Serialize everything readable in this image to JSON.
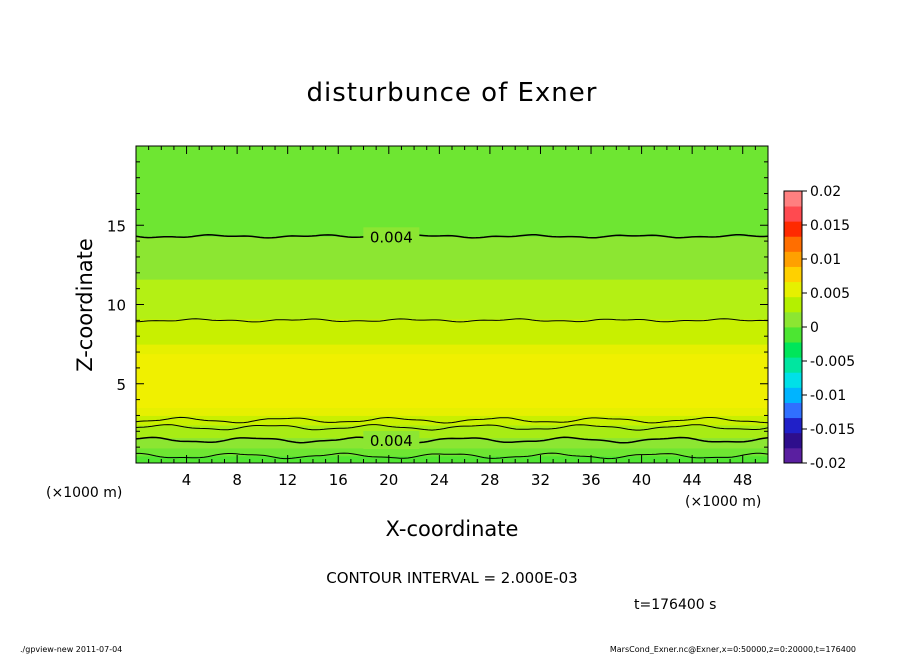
{
  "chart_data": {
    "type": "heatmap",
    "title": "disturbunce of Exner",
    "xlabel": "X-coordinate",
    "ylabel": "Z-coordinate",
    "x_unit_left": "(×1000 m)",
    "x_unit_right": "(×1000 m)",
    "xlim": [
      0,
      50
    ],
    "ylim": [
      0,
      20
    ],
    "x_ticks": [
      4,
      8,
      12,
      16,
      20,
      24,
      28,
      32,
      36,
      40,
      44,
      48
    ],
    "y_ticks": [
      5,
      10,
      15
    ],
    "contour_interval_text": "CONTOUR INTERVAL = 2.000E-03",
    "time_text": "t=176400 s",
    "colorbar": {
      "min": -0.02,
      "max": 0.02,
      "tick_labels": [
        "0.02",
        "0.015",
        "0.01",
        "0.005",
        "0",
        "-0.005",
        "-0.01",
        "-0.015",
        "-0.02"
      ],
      "tick_values": [
        0.02,
        0.015,
        0.01,
        0.005,
        0,
        -0.005,
        -0.01,
        -0.015,
        -0.02
      ],
      "colors": [
        "#5a1fa0",
        "#2e0e8c",
        "#2020c8",
        "#3070ff",
        "#00b4ff",
        "#00e0e8",
        "#00e6a0",
        "#00e65a",
        "#4ce632",
        "#8ce632",
        "#b4f000",
        "#e6f000",
        "#ffd000",
        "#ffa000",
        "#ff6e00",
        "#ff2a00",
        "#ff4a50",
        "#ff8080"
      ]
    },
    "bands": [
      {
        "z_from": 0.0,
        "z_to": 0.45,
        "color": "#50e632"
      },
      {
        "z_from": 0.45,
        "z_to": 0.95,
        "color": "#6ee632"
      },
      {
        "z_from": 0.95,
        "z_to": 1.6,
        "color": "#8ce632"
      },
      {
        "z_from": 1.6,
        "z_to": 2.4,
        "color": "#a8ec14"
      },
      {
        "z_from": 2.4,
        "z_to": 3.0,
        "color": "#c8f000"
      },
      {
        "z_from": 3.0,
        "z_to": 3.5,
        "color": "#e6f000"
      },
      {
        "z_from": 3.5,
        "z_to": 6.9,
        "color": "#f0f000"
      },
      {
        "z_from": 6.9,
        "z_to": 7.5,
        "color": "#e6f000"
      },
      {
        "z_from": 7.5,
        "z_to": 9.1,
        "color": "#c8f000"
      },
      {
        "z_from": 9.1,
        "z_to": 11.6,
        "color": "#b4f014"
      },
      {
        "z_from": 11.6,
        "z_to": 14.3,
        "color": "#8ce632"
      },
      {
        "z_from": 14.3,
        "z_to": 20.0,
        "color": "#6ee632"
      }
    ],
    "contours": [
      {
        "z": 14.3,
        "width": 1.5,
        "label": "0.004",
        "label_x": 20.2
      },
      {
        "z": 9.0,
        "width": 1.0,
        "label": "",
        "label_x": 0
      },
      {
        "z": 2.7,
        "width": 1.0,
        "label": "",
        "label_x": 0
      },
      {
        "z": 2.25,
        "width": 1.0,
        "label": "",
        "label_x": 0
      },
      {
        "z": 1.45,
        "width": 1.5,
        "label": "0.004",
        "label_x": 20.2
      },
      {
        "z": 0.45,
        "width": 1.0,
        "label": "",
        "label_x": 0
      }
    ]
  },
  "footer": {
    "left": "./gpview-new   2011-07-04",
    "right": "MarsCond_Exner.nc@Exner,x=0:50000,z=0:20000,t=176400"
  }
}
